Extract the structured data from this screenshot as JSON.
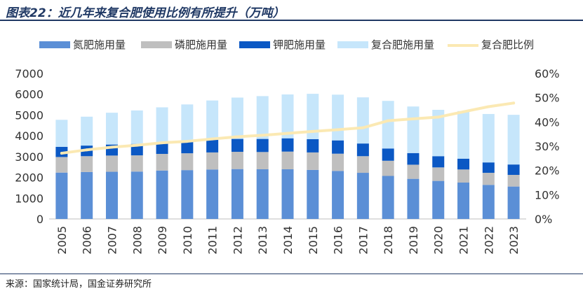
{
  "header": {
    "title": "图表22：近几年来复合肥使用比例有所提升（万吨）"
  },
  "footer": {
    "source": "来源：国家统计局，国金证券研究所"
  },
  "chart_data": {
    "type": "bar",
    "stacked": true,
    "categories": [
      "2005",
      "2006",
      "2007",
      "2008",
      "2009",
      "2010",
      "2011",
      "2012",
      "2013",
      "2014",
      "2015",
      "2016",
      "2017",
      "2018",
      "2019",
      "2020",
      "2021",
      "2022",
      "2023"
    ],
    "series": [
      {
        "name": "氮肥施用量",
        "color": "#5b8fd6",
        "values": [
          2230,
          2260,
          2270,
          2280,
          2330,
          2350,
          2380,
          2400,
          2390,
          2390,
          2360,
          2310,
          2220,
          2070,
          1930,
          1830,
          1750,
          1640,
          1560
        ]
      },
      {
        "name": "磷肥施用量",
        "color": "#bfbfbf",
        "values": [
          750,
          760,
          780,
          780,
          800,
          810,
          820,
          830,
          830,
          850,
          840,
          830,
          800,
          730,
          680,
          650,
          630,
          580,
          560
        ]
      },
      {
        "name": "钾肥施用量",
        "color": "#0b58c4",
        "values": [
          490,
          510,
          530,
          550,
          560,
          590,
          610,
          620,
          630,
          640,
          640,
          640,
          610,
          590,
          560,
          540,
          520,
          500,
          500
        ]
      },
      {
        "name": "复合肥施用量",
        "color": "#c6e6fb",
        "values": [
          1300,
          1390,
          1530,
          1610,
          1680,
          1760,
          1890,
          1990,
          2060,
          2110,
          2180,
          2200,
          2220,
          2290,
          2240,
          2230,
          2290,
          2330,
          2390
        ]
      },
      {
        "name": "复合肥比例",
        "type": "line",
        "axis": "right",
        "color": "#fbe9b3",
        "values": [
          27.1,
          28.5,
          29.6,
          30.4,
          31.4,
          32.0,
          33.0,
          33.9,
          34.5,
          35.3,
          36.1,
          36.8,
          37.6,
          40.5,
          41.3,
          42.0,
          44.2,
          46.3,
          47.8
        ]
      }
    ],
    "y_left": {
      "min": 0,
      "max": 7000,
      "step": 1000,
      "ticks": [
        "0",
        "1000",
        "2000",
        "3000",
        "4000",
        "5000",
        "6000",
        "7000"
      ]
    },
    "y_right": {
      "min": 0,
      "max": 60,
      "step": 10,
      "ticks": [
        "0%",
        "10%",
        "20%",
        "30%",
        "40%",
        "50%",
        "60%"
      ]
    },
    "grid": false,
    "legend": "top"
  }
}
